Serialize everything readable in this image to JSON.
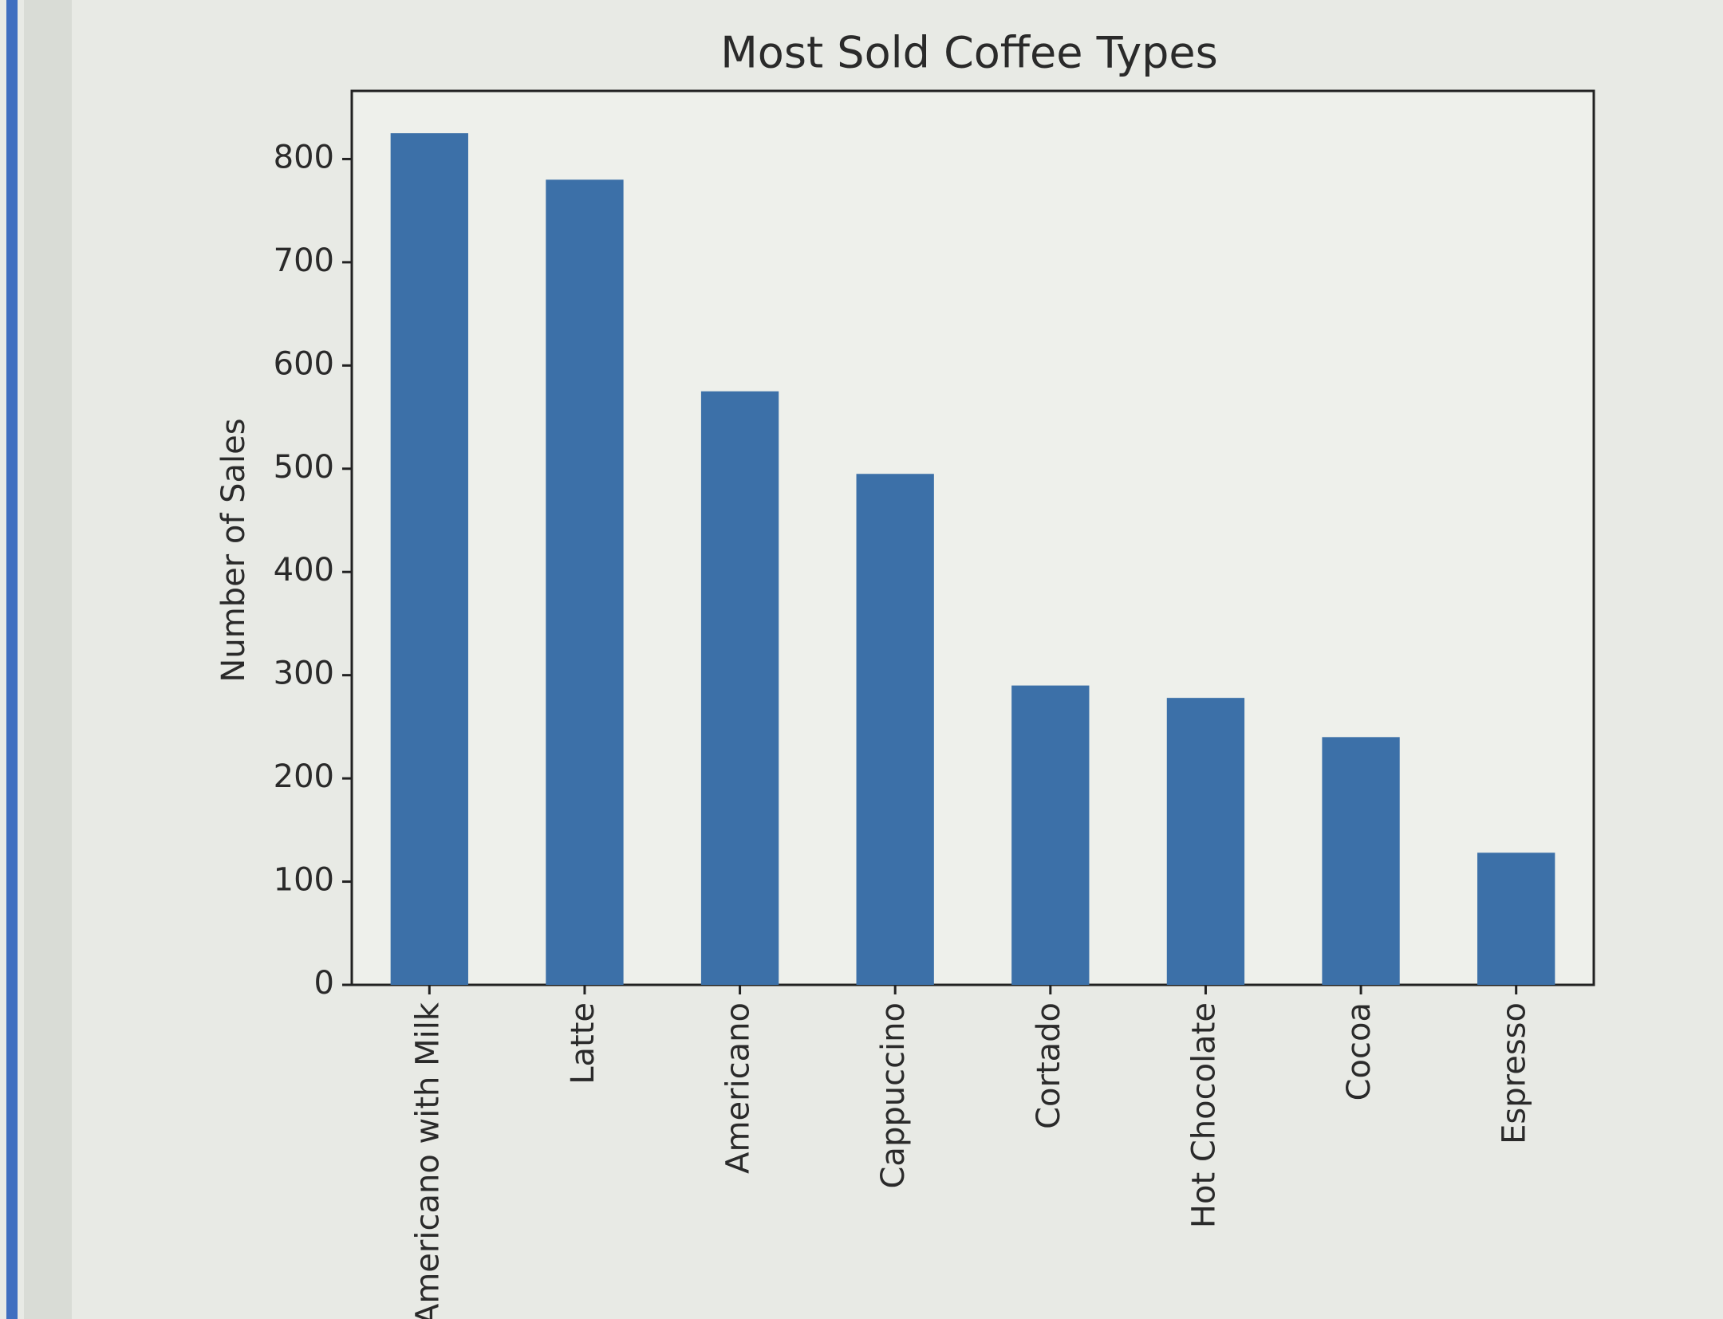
{
  "chart_data": {
    "type": "bar",
    "title": "Most Sold Coffee Types",
    "y_label": "Number of Sales",
    "categories": [
      "Americano with Milk",
      "Latte",
      "Americano",
      "Cappuccino",
      "Cortado",
      "Hot Chocolate",
      "Cocoa",
      "Espresso"
    ],
    "values": [
      825,
      780,
      575,
      495,
      290,
      278,
      240,
      128
    ],
    "color": "#3c70a8",
    "ylim": [
      0,
      866
    ],
    "yticks": [
      0,
      100,
      200,
      300,
      400,
      500,
      600,
      700,
      800
    ],
    "grid": false
  }
}
